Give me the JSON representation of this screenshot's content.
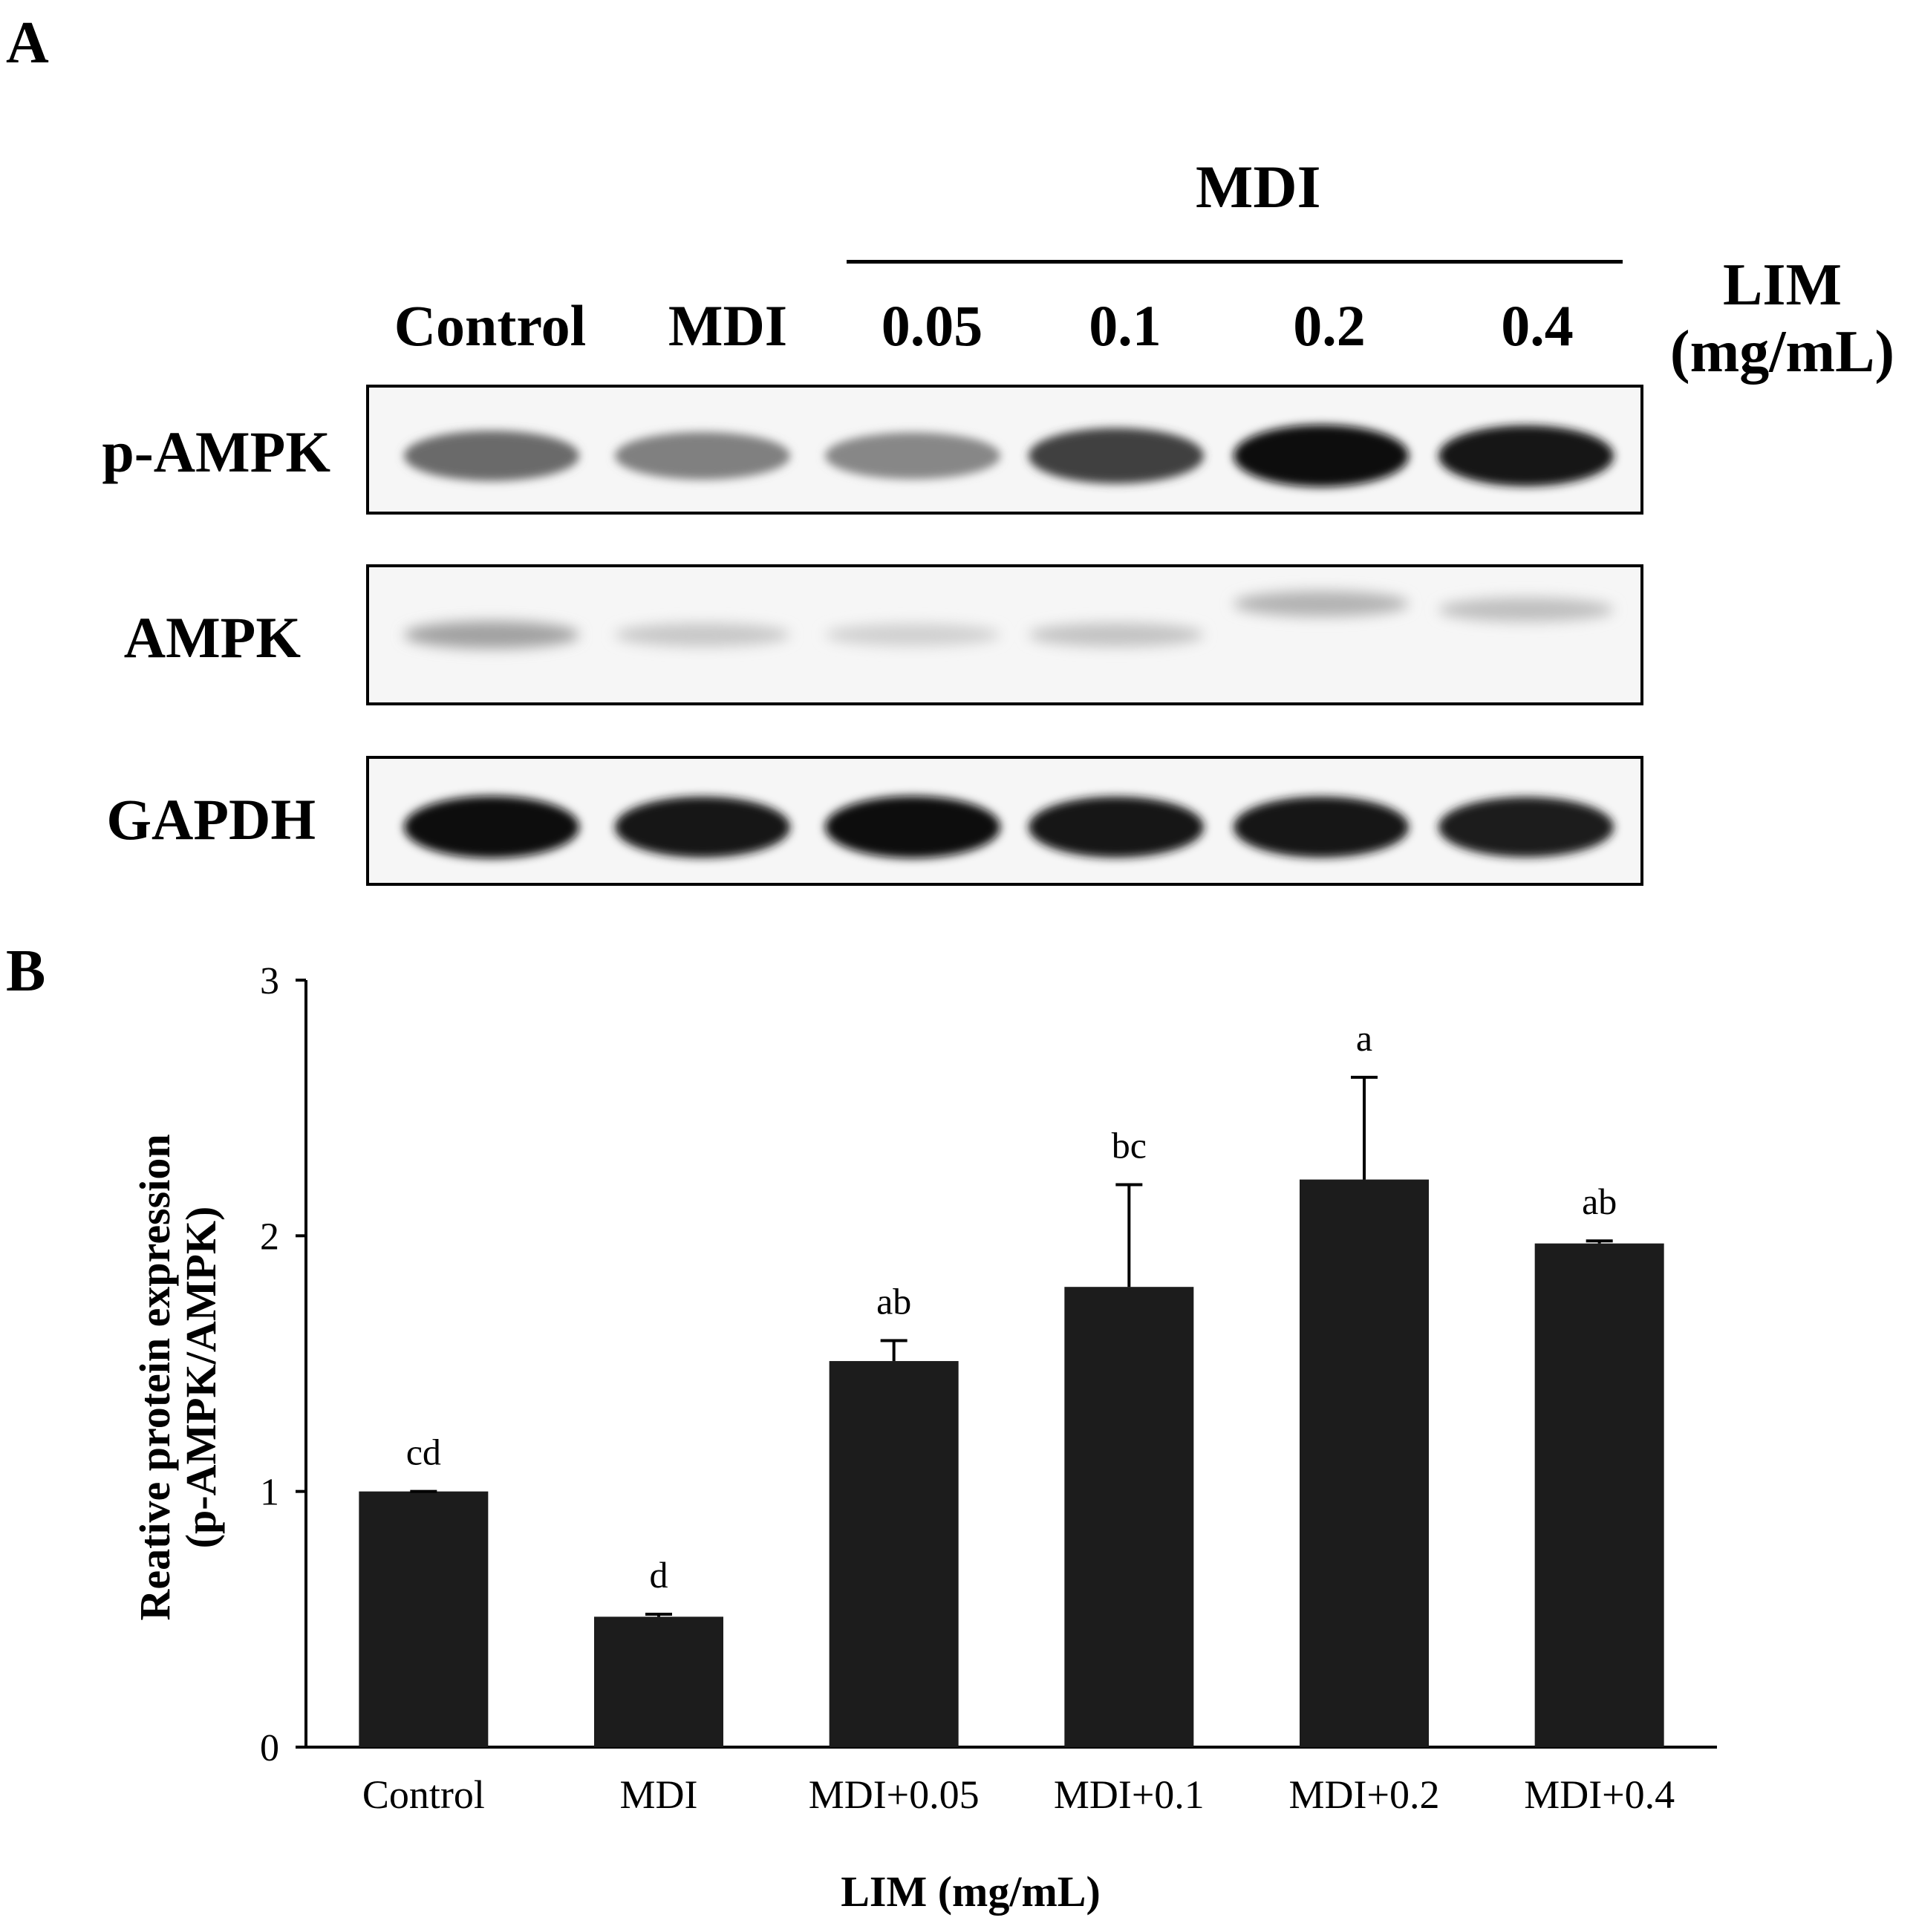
{
  "panel_a": {
    "letter": "A",
    "group_label": "MDI",
    "dose_label_line1": "LIM",
    "dose_label_line2": "(mg/mL)",
    "lanes": [
      "Control",
      "MDI",
      "0.05",
      "0.1",
      "0.2",
      "0.4"
    ],
    "rows": [
      {
        "label": "p-AMPK",
        "intensity": [
          0.55,
          0.45,
          0.42,
          0.75,
          1.0,
          0.95
        ]
      },
      {
        "label": "AMPK",
        "intensity": [
          0.3,
          0.12,
          0.08,
          0.14,
          0.22,
          0.16
        ]
      },
      {
        "label": "GAPDH",
        "intensity": [
          1.0,
          0.95,
          1.0,
          0.95,
          0.95,
          0.92
        ]
      }
    ]
  },
  "panel_b": {
    "letter": "B"
  },
  "chart_data": {
    "type": "bar",
    "categories": [
      "Control",
      "MDI",
      "MDI+0.05",
      "MDI+0.1",
      "MDI+0.2",
      "MDI+0.4"
    ],
    "values": [
      1.0,
      0.51,
      1.51,
      1.8,
      2.22,
      1.97
    ],
    "errors": [
      0.0,
      0.01,
      0.08,
      0.4,
      0.4,
      0.01
    ],
    "significance": [
      "cd",
      "d",
      "ab",
      "bc",
      "a",
      "ab"
    ],
    "ylabel_line1": "Reative protein expression",
    "ylabel_line2": "(p-AMPK/AMPK)",
    "xlabel": "LIM (mg/mL)",
    "ylim": [
      0,
      3
    ],
    "yticks": [
      0,
      1,
      2,
      3
    ],
    "bar_color": "#1c1c1c",
    "grid": false,
    "legend": "none"
  }
}
